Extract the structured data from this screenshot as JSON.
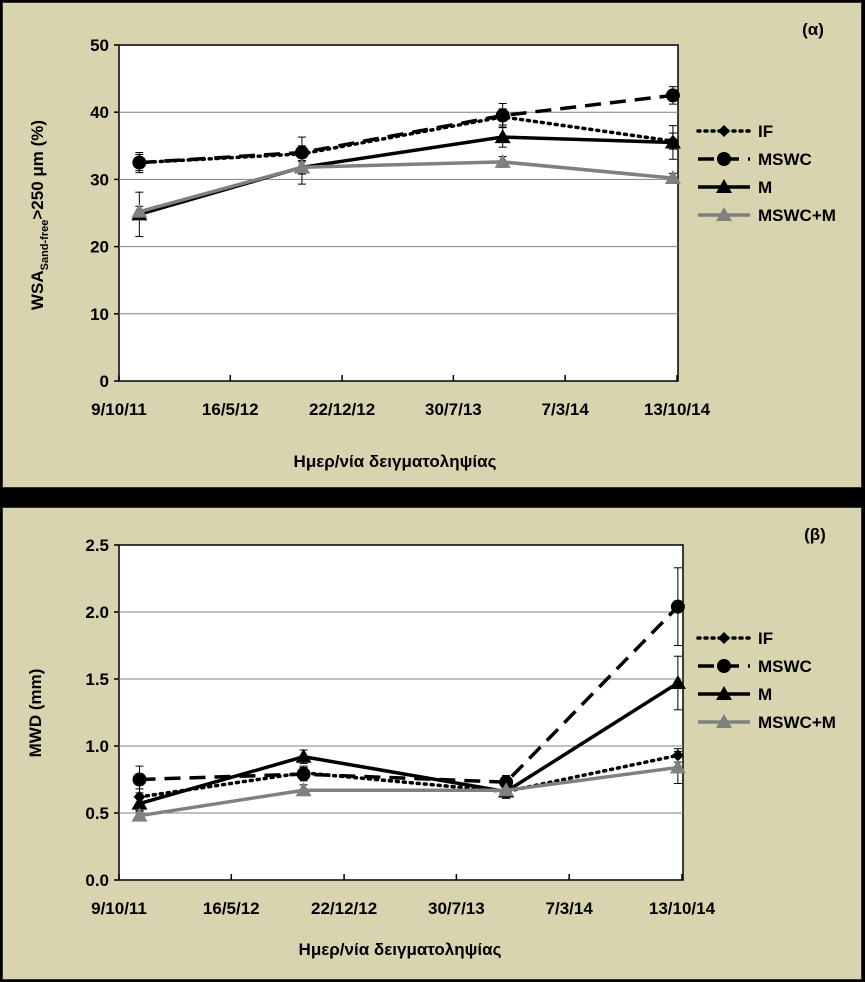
{
  "chart_data": [
    {
      "type": "line",
      "panel_label": "(α)",
      "title": "",
      "xlabel": "Ημερ/νία δειγματοληψίας",
      "ylabel_main": "WSA",
      "ylabel_sub": "Sand-free",
      "ylabel_rest": ">250 μm (%)",
      "ylim": [
        0,
        50
      ],
      "yticks": [
        0,
        10,
        20,
        30,
        40,
        50
      ],
      "ytick_labels": [
        "0",
        "10",
        "20",
        "30",
        "40",
        "50"
      ],
      "xlim_days": [
        0,
        1100
      ],
      "xtick_days": [
        0,
        219,
        439,
        658,
        878,
        1098
      ],
      "xtick_labels": [
        "9/10/11",
        "16/5/12",
        "22/12/12",
        "30/7/13",
        "7/3/14",
        "13/10/14"
      ],
      "x_days": [
        40,
        360,
        755,
        1090
      ],
      "series": [
        {
          "name": "IF",
          "values": [
            32.5,
            33.8,
            39.3,
            35.7
          ],
          "err": [
            1.5,
            1.2,
            1.2,
            1.2
          ],
          "color": "#000000",
          "dash": "dot",
          "marker": "diamond"
        },
        {
          "name": "MSWC",
          "values": [
            32.5,
            34.0,
            39.5,
            42.5
          ],
          "err": [
            1.2,
            2.3,
            1.8,
            1.3
          ],
          "color": "#000000",
          "dash": "dash",
          "marker": "circle"
        },
        {
          "name": "M",
          "values": [
            24.8,
            31.8,
            36.3,
            35.5
          ],
          "err": [
            3.3,
            2.5,
            1.5,
            2.5
          ],
          "color": "#000000",
          "dash": "solid",
          "marker": "triangle"
        },
        {
          "name": "MSWC+M",
          "values": [
            25.2,
            31.8,
            32.6,
            30.2
          ],
          "err": [
            0.8,
            1.0,
            0.8,
            0.7
          ],
          "color": "#808080",
          "dash": "solid",
          "marker": "triangle"
        }
      ]
    },
    {
      "type": "line",
      "panel_label": "(β)",
      "title": "",
      "xlabel": "Ημερ/νία δειγματοληψίας",
      "ylabel_main": "MWD (mm)",
      "ylim": [
        0,
        2.5
      ],
      "yticks": [
        0,
        0.5,
        1.0,
        1.5,
        2.0,
        2.5
      ],
      "ytick_labels": [
        "0.0",
        "0.5",
        "1.0",
        "1.5",
        "2.0",
        "2.5"
      ],
      "xlim_days": [
        0,
        1100
      ],
      "xtick_days": [
        0,
        219,
        439,
        658,
        878,
        1098
      ],
      "xtick_labels": [
        "9/10/11",
        "16/5/12",
        "22/12/12",
        "30/7/13",
        "7/3/14",
        "13/10/14"
      ],
      "x_days": [
        40,
        360,
        755,
        1090
      ],
      "series": [
        {
          "name": "IF",
          "values": [
            0.62,
            0.8,
            0.66,
            0.93
          ],
          "err": [
            0.06,
            0.05,
            0.05,
            0.05
          ],
          "color": "#000000",
          "dash": "dot",
          "marker": "diamond"
        },
        {
          "name": "MSWC",
          "values": [
            0.75,
            0.79,
            0.73,
            2.04
          ],
          "err": [
            0.1,
            0.05,
            0.05,
            0.29
          ],
          "color": "#000000",
          "dash": "dash",
          "marker": "circle"
        },
        {
          "name": "M",
          "values": [
            0.57,
            0.92,
            0.66,
            1.47
          ],
          "err": [
            0.05,
            0.05,
            0.05,
            0.2
          ],
          "color": "#000000",
          "dash": "solid",
          "marker": "triangle"
        },
        {
          "name": "MSWC+M",
          "values": [
            0.48,
            0.67,
            0.67,
            0.84
          ],
          "err": [
            0.03,
            0.04,
            0.04,
            0.12
          ],
          "color": "#808080",
          "dash": "solid",
          "marker": "triangle"
        }
      ]
    }
  ]
}
